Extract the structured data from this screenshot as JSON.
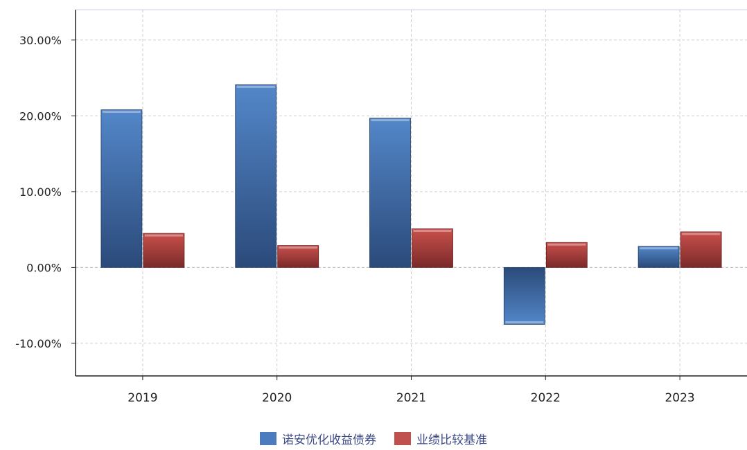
{
  "chart_data": {
    "type": "bar",
    "title": "",
    "xlabel": "",
    "ylabel": "",
    "categories": [
      "2019",
      "2020",
      "2021",
      "2022",
      "2023"
    ],
    "series": [
      {
        "name": "诺安优化收益债券",
        "values": [
          20.8,
          24.1,
          19.7,
          -7.5,
          2.8
        ],
        "color": "#4a7cbf"
      },
      {
        "name": "业绩比较基准",
        "values": [
          4.5,
          2.9,
          5.1,
          3.3,
          4.7
        ],
        "color": "#c0504d"
      }
    ],
    "ylim": [
      -14.3,
      34
    ],
    "yticks": [
      -10,
      0,
      10,
      20,
      30
    ],
    "ytick_labels": [
      "-10.00%",
      "0.00%",
      "10.00%",
      "20.00%",
      "30.00%"
    ],
    "grid": true,
    "legend": "bottom-center"
  }
}
